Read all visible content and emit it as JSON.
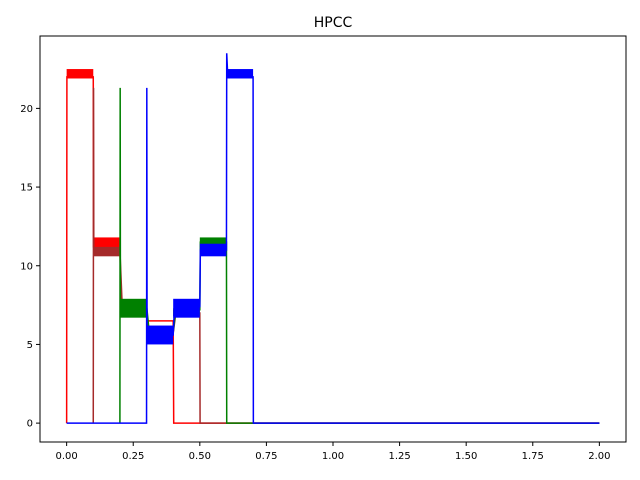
{
  "chart_data": {
    "type": "line",
    "title": "HPCC",
    "xlabel": "",
    "ylabel": "",
    "xlim": [
      -0.1,
      2.1
    ],
    "ylim": [
      -1.2,
      24.6
    ],
    "x_ticks": [
      0.0,
      0.25,
      0.5,
      0.75,
      1.0,
      1.25,
      1.5,
      1.75,
      2.0
    ],
    "x_tick_labels": [
      "0.00",
      "0.25",
      "0.50",
      "0.75",
      "1.00",
      "1.25",
      "1.50",
      "1.75",
      "2.00"
    ],
    "y_ticks": [
      0,
      5,
      10,
      15,
      20
    ],
    "y_tick_labels": [
      "0",
      "5",
      "10",
      "15",
      "20"
    ],
    "grid": false,
    "series": [
      {
        "color": "#ff0000",
        "x": [
          0.0,
          0.001,
          0.1,
          0.101,
          0.2,
          0.205,
          0.3,
          0.305,
          0.4,
          0.402,
          2.0
        ],
        "y": [
          0,
          22.0,
          22.0,
          11.2,
          11.2,
          7.0,
          7.0,
          6.5,
          6.5,
          0,
          0
        ],
        "band": [
          {
            "x0": 0.0,
            "x1": 0.1,
            "y0": 21.9,
            "y1": 22.5
          },
          {
            "x0": 0.1,
            "x1": 0.2,
            "y0": 11.2,
            "y1": 11.8
          },
          {
            "x0": 0.2,
            "x1": 0.3,
            "y0": 6.8,
            "y1": 7.4
          }
        ]
      },
      {
        "color": "#a52a2a",
        "x": [
          0.1,
          0.101,
          0.102,
          0.2,
          0.21,
          0.3,
          0.31,
          0.4,
          0.41,
          0.5,
          0.501,
          2.0
        ],
        "y": [
          0,
          21.3,
          11.0,
          11.0,
          6.9,
          6.9,
          5.7,
          5.7,
          7.0,
          7.0,
          0,
          0
        ],
        "band": [
          {
            "x0": 0.1,
            "x1": 0.2,
            "y0": 10.6,
            "y1": 11.2
          },
          {
            "x0": 0.4,
            "x1": 0.5,
            "y0": 6.8,
            "y1": 7.2
          }
        ]
      },
      {
        "color": "#008000",
        "x": [
          0.2,
          0.201,
          0.202,
          0.3,
          0.31,
          0.4,
          0.41,
          0.5,
          0.502,
          0.6,
          0.601,
          2.0
        ],
        "y": [
          0,
          21.3,
          7.5,
          7.5,
          5.8,
          5.8,
          7.2,
          7.2,
          11.5,
          11.5,
          0,
          0
        ],
        "band": [
          {
            "x0": 0.2,
            "x1": 0.3,
            "y0": 6.7,
            "y1": 7.9
          },
          {
            "x0": 0.4,
            "x1": 0.5,
            "y0": 6.8,
            "y1": 7.3
          },
          {
            "x0": 0.5,
            "x1": 0.6,
            "y0": 11.2,
            "y1": 11.8
          }
        ]
      },
      {
        "color": "#0000ff",
        "x": [
          0.0,
          0.3,
          0.301,
          0.302,
          0.4,
          0.405,
          0.5,
          0.502,
          0.6,
          0.601,
          0.605,
          0.7,
          0.701,
          2.0
        ],
        "y": [
          0,
          0,
          21.3,
          5.6,
          5.6,
          7.4,
          7.4,
          11.0,
          11.0,
          23.5,
          22.0,
          22.0,
          0,
          0
        ],
        "band": [
          {
            "x0": 0.3,
            "x1": 0.4,
            "y0": 5.0,
            "y1": 6.2
          },
          {
            "x0": 0.4,
            "x1": 0.5,
            "y0": 6.7,
            "y1": 7.9
          },
          {
            "x0": 0.5,
            "x1": 0.6,
            "y0": 10.6,
            "y1": 11.4
          },
          {
            "x0": 0.6,
            "x1": 0.7,
            "y0": 21.9,
            "y1": 22.5
          }
        ]
      }
    ]
  }
}
